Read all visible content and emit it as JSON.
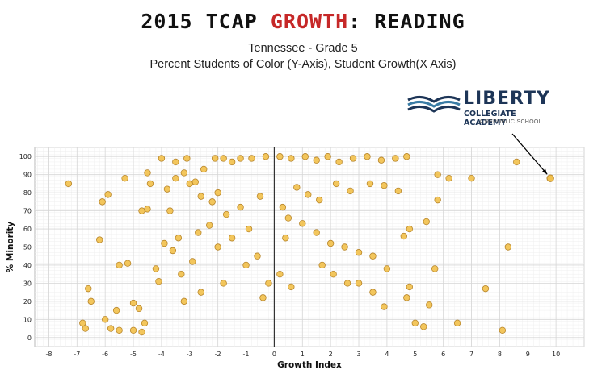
{
  "header": {
    "title_pre": "2015 TCAP ",
    "title_accent": "GROWTH",
    "title_post": ":  READING",
    "subtitle1": "Tennessee - Grade 5",
    "subtitle2": "Percent Students of Color (Y-Axis), Student Growth(X Axis)"
  },
  "logo": {
    "name": "LIBERTY",
    "line2": "COLLEGIATE ACADEMY",
    "line3": "A REPUBLIC SCHOOL",
    "color": "#1d3557"
  },
  "chart_data": {
    "type": "scatter",
    "xlabel": "Growth Index",
    "ylabel": "% Minority",
    "xlim": [
      -8.5,
      11
    ],
    "ylim": [
      -5,
      105
    ],
    "xticks": [
      -8,
      -7,
      -6,
      -5,
      -4,
      -3,
      -2,
      -1,
      0,
      1,
      2,
      3,
      4,
      5,
      6,
      7,
      8,
      9,
      10
    ],
    "yticks": [
      0,
      10,
      20,
      30,
      40,
      50,
      60,
      70,
      80,
      90,
      100
    ],
    "grid": true,
    "marker_color": "#f2c14e",
    "marker_edge": "#b8862b",
    "highlight": {
      "label": "LIBERTY",
      "x": 9.8,
      "y": 88
    },
    "points": [
      [
        -7.3,
        85
      ],
      [
        -6.1,
        75
      ],
      [
        -5.9,
        79
      ],
      [
        -6.2,
        54
      ],
      [
        -5.3,
        88
      ],
      [
        -4.7,
        70
      ],
      [
        -4.5,
        71
      ],
      [
        -4.4,
        85
      ],
      [
        -4.5,
        91
      ],
      [
        -4.0,
        99
      ],
      [
        -3.8,
        82
      ],
      [
        -3.5,
        88
      ],
      [
        -3.2,
        91
      ],
      [
        -3.0,
        85
      ],
      [
        -2.8,
        86
      ],
      [
        -2.6,
        78
      ],
      [
        -2.2,
        75
      ],
      [
        -2.0,
        80
      ],
      [
        -1.7,
        68
      ],
      [
        -1.2,
        72
      ],
      [
        -0.5,
        78
      ],
      [
        -3.7,
        70
      ],
      [
        -5.6,
        15
      ],
      [
        -6.5,
        20
      ],
      [
        -6.7,
        5
      ],
      [
        -6.8,
        8
      ],
      [
        -6.6,
        27
      ],
      [
        -5.5,
        40
      ],
      [
        -5.2,
        41
      ],
      [
        -5.0,
        19
      ],
      [
        -4.8,
        16
      ],
      [
        -5.8,
        5
      ],
      [
        -5.5,
        4
      ],
      [
        -6.0,
        10
      ],
      [
        -5.0,
        4
      ],
      [
        -4.7,
        3
      ],
      [
        -4.6,
        8
      ],
      [
        -4.2,
        38
      ],
      [
        -4.1,
        31
      ],
      [
        -3.9,
        52
      ],
      [
        -3.6,
        48
      ],
      [
        -3.4,
        55
      ],
      [
        -3.5,
        97
      ],
      [
        -3.1,
        99
      ],
      [
        -2.5,
        93
      ],
      [
        -2.1,
        99
      ],
      [
        -1.8,
        99
      ],
      [
        -1.5,
        97
      ],
      [
        -1.2,
        99
      ],
      [
        -0.8,
        99
      ],
      [
        -0.3,
        100
      ],
      [
        0.2,
        100
      ],
      [
        0.6,
        99
      ],
      [
        1.1,
        100
      ],
      [
        1.5,
        98
      ],
      [
        1.9,
        100
      ],
      [
        2.3,
        97
      ],
      [
        2.8,
        99
      ],
      [
        3.3,
        100
      ],
      [
        3.8,
        98
      ],
      [
        4.3,
        99
      ],
      [
        4.7,
        100
      ],
      [
        0.8,
        83
      ],
      [
        1.2,
        79
      ],
      [
        1.6,
        76
      ],
      [
        2.2,
        85
      ],
      [
        2.7,
        81
      ],
      [
        3.4,
        85
      ],
      [
        3.9,
        84
      ],
      [
        4.4,
        81
      ],
      [
        1.0,
        63
      ],
      [
        1.5,
        58
      ],
      [
        2.0,
        52
      ],
      [
        2.5,
        50
      ],
      [
        3.0,
        47
      ],
      [
        3.5,
        45
      ],
      [
        4.0,
        38
      ],
      [
        4.6,
        56
      ],
      [
        4.8,
        60
      ],
      [
        5.4,
        64
      ],
      [
        5.7,
        38
      ],
      [
        5.8,
        76
      ],
      [
        5.8,
        90
      ],
      [
        6.2,
        88
      ],
      [
        7.0,
        88
      ],
      [
        8.6,
        97
      ],
      [
        8.3,
        50
      ],
      [
        7.5,
        27
      ],
      [
        8.1,
        4
      ],
      [
        6.5,
        8
      ],
      [
        5.5,
        18
      ],
      [
        5.3,
        6
      ],
      [
        5.0,
        8
      ],
      [
        4.8,
        28
      ],
      [
        4.7,
        22
      ],
      [
        3.9,
        17
      ],
      [
        3.5,
        25
      ],
      [
        3.0,
        30
      ],
      [
        -1.0,
        40
      ],
      [
        -0.6,
        45
      ],
      [
        -0.9,
        60
      ],
      [
        -1.5,
        55
      ],
      [
        -2.0,
        50
      ],
      [
        -2.3,
        62
      ],
      [
        -2.7,
        58
      ],
      [
        -3.3,
        35
      ],
      [
        -2.9,
        42
      ],
      [
        0.3,
        72
      ],
      [
        0.5,
        66
      ],
      [
        0.4,
        55
      ],
      [
        -0.2,
        30
      ],
      [
        0.2,
        35
      ],
      [
        0.6,
        28
      ],
      [
        -0.4,
        22
      ],
      [
        1.7,
        40
      ],
      [
        2.1,
        35
      ],
      [
        2.6,
        30
      ],
      [
        -1.8,
        30
      ],
      [
        -2.6,
        25
      ],
      [
        -3.2,
        20
      ]
    ]
  }
}
